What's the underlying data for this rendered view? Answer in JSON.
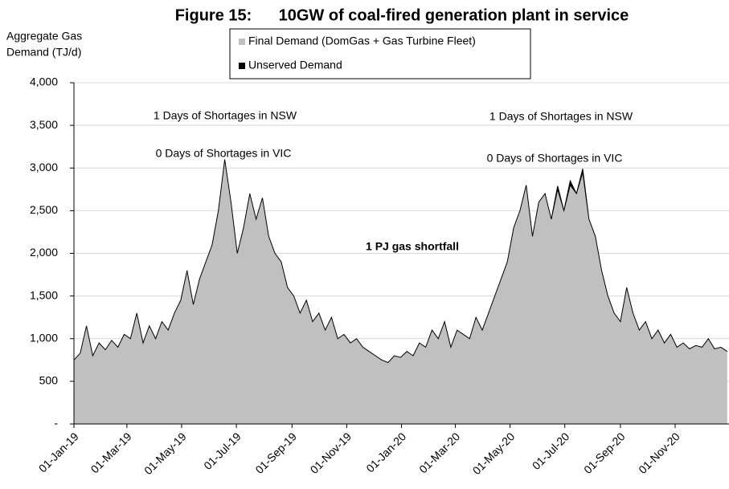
{
  "chart_data": {
    "type": "area",
    "title": "Figure 15:      10GW of coal-fired generation plant in service",
    "ylabel": [
      "Aggregate Gas",
      "Demand (TJ/d)"
    ],
    "stacked": true,
    "grid": true,
    "x": [
      "01-Jan-19",
      "08-Jan-19",
      "15-Jan-19",
      "22-Jan-19",
      "29-Jan-19",
      "05-Feb-19",
      "12-Feb-19",
      "19-Feb-19",
      "26-Feb-19",
      "05-Mar-19",
      "12-Mar-19",
      "19-Mar-19",
      "26-Mar-19",
      "02-Apr-19",
      "09-Apr-19",
      "16-Apr-19",
      "23-Apr-19",
      "30-Apr-19",
      "07-May-19",
      "14-May-19",
      "21-May-19",
      "28-May-19",
      "04-Jun-19",
      "11-Jun-19",
      "18-Jun-19",
      "25-Jun-19",
      "02-Jul-19",
      "09-Jul-19",
      "16-Jul-19",
      "23-Jul-19",
      "30-Jul-19",
      "06-Aug-19",
      "13-Aug-19",
      "20-Aug-19",
      "27-Aug-19",
      "03-Sep-19",
      "10-Sep-19",
      "17-Sep-19",
      "24-Sep-19",
      "01-Oct-19",
      "08-Oct-19",
      "15-Oct-19",
      "22-Oct-19",
      "29-Oct-19",
      "05-Nov-19",
      "12-Nov-19",
      "19-Nov-19",
      "26-Nov-19",
      "03-Dec-19",
      "10-Dec-19",
      "17-Dec-19",
      "24-Dec-19",
      "31-Dec-19",
      "07-Jan-20",
      "14-Jan-20",
      "21-Jan-20",
      "28-Jan-20",
      "04-Feb-20",
      "11-Feb-20",
      "18-Feb-20",
      "25-Feb-20",
      "03-Mar-20",
      "10-Mar-20",
      "17-Mar-20",
      "24-Mar-20",
      "31-Mar-20",
      "07-Apr-20",
      "14-Apr-20",
      "21-Apr-20",
      "28-Apr-20",
      "05-May-20",
      "12-May-20",
      "19-May-20",
      "26-May-20",
      "02-Jun-20",
      "09-Jun-20",
      "16-Jun-20",
      "23-Jun-20",
      "30-Jun-20",
      "07-Jul-20",
      "14-Jul-20",
      "21-Jul-20",
      "28-Jul-20",
      "04-Aug-20",
      "11-Aug-20",
      "18-Aug-20",
      "25-Aug-20",
      "01-Sep-20",
      "08-Sep-20",
      "15-Sep-20",
      "22-Sep-20",
      "29-Sep-20",
      "06-Oct-20",
      "13-Oct-20",
      "20-Oct-20",
      "27-Oct-20",
      "03-Nov-20",
      "10-Nov-20",
      "17-Nov-20",
      "24-Nov-20",
      "01-Dec-20",
      "08-Dec-20",
      "15-Dec-20",
      "22-Dec-20",
      "29-Dec-20"
    ],
    "series": [
      {
        "name": "Final Demand (DomGas + Gas Turbine Fleet)",
        "color": "#c0c0c0",
        "values": [
          750,
          830,
          1150,
          800,
          950,
          870,
          980,
          900,
          1050,
          1000,
          1300,
          950,
          1150,
          1000,
          1200,
          1100,
          1300,
          1450,
          1800,
          1400,
          1700,
          1900,
          2100,
          2500,
          3100,
          2600,
          2000,
          2300,
          2700,
          2400,
          2650,
          2200,
          2000,
          1900,
          1600,
          1500,
          1300,
          1450,
          1200,
          1300,
          1100,
          1250,
          1000,
          1050,
          950,
          1000,
          900,
          850,
          800,
          750,
          720,
          800,
          780,
          850,
          800,
          950,
          900,
          1100,
          1000,
          1200,
          900,
          1100,
          1050,
          1000,
          1250,
          1100,
          1300,
          1500,
          1700,
          1900,
          2300,
          2500,
          2800,
          2200,
          2600,
          2700,
          2400,
          2750,
          2500,
          2800,
          2700,
          2950,
          2400,
          2200,
          1800,
          1500,
          1300,
          1200,
          1600,
          1300,
          1100,
          1200,
          1000,
          1100,
          950,
          1050,
          900,
          950,
          880,
          920,
          900,
          1000,
          880,
          900,
          850
        ]
      },
      {
        "name": "Unserved Demand",
        "color": "#000000",
        "values": [
          0,
          0,
          0,
          0,
          0,
          0,
          0,
          0,
          0,
          0,
          0,
          0,
          0,
          0,
          0,
          0,
          0,
          0,
          0,
          0,
          0,
          0,
          0,
          0,
          0,
          0,
          0,
          0,
          0,
          0,
          0,
          0,
          0,
          0,
          0,
          0,
          0,
          0,
          0,
          0,
          0,
          0,
          0,
          0,
          0,
          0,
          0,
          0,
          0,
          0,
          0,
          0,
          0,
          0,
          0,
          0,
          0,
          0,
          0,
          0,
          0,
          0,
          0,
          0,
          0,
          0,
          0,
          0,
          0,
          0,
          0,
          0,
          0,
          0,
          0,
          0,
          0,
          40,
          0,
          50,
          0,
          40,
          0,
          0,
          0,
          0,
          0,
          0,
          0,
          0,
          0,
          0,
          0,
          0,
          0,
          0,
          0,
          0,
          0,
          0,
          0,
          0,
          0,
          0,
          0
        ]
      }
    ],
    "xlim": [
      "01-Jan-19",
      "31-Dec-20"
    ],
    "xticks": [
      "01-Jan-19",
      "01-Mar-19",
      "01-May-19",
      "01-Jul-19",
      "01-Sep-19",
      "01-Nov-19",
      "01-Jan-20",
      "01-Mar-20",
      "01-May-20",
      "01-Jul-20",
      "01-Sep-20",
      "01-Nov-20"
    ],
    "ylim": [
      0,
      4000
    ],
    "yticks": [
      {
        "value": 0,
        "label": "-"
      },
      500,
      {
        "value": 1000,
        "label": "1,000"
      },
      {
        "value": 1500,
        "label": "1,500"
      },
      {
        "value": 2000,
        "label": "2,000"
      },
      {
        "value": 2500,
        "label": "2,500"
      },
      {
        "value": 3000,
        "label": "3,000"
      },
      {
        "value": 3500,
        "label": "3,500"
      },
      {
        "value": 4000,
        "label": "4,000"
      }
    ],
    "annotations": [
      "1 Days of Shortages in NSW",
      "0 Days of Shortages in VIC",
      "1 Days of Shortages in NSW",
      "0 Days of Shortages in VIC",
      "1 PJ gas shortfall"
    ]
  }
}
